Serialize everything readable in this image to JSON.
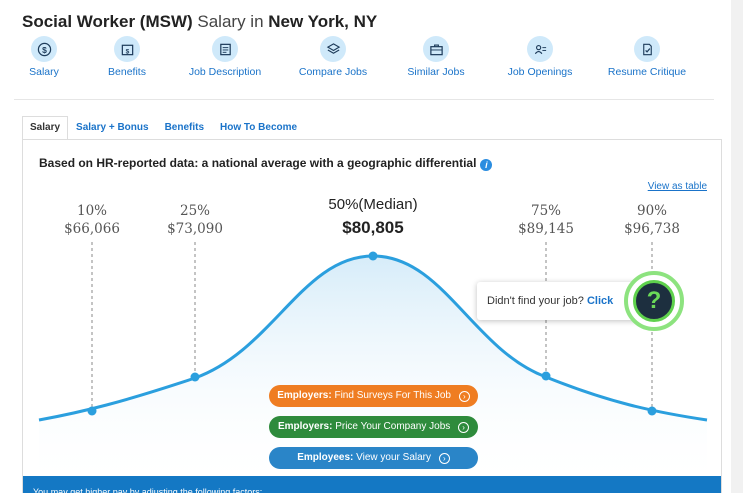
{
  "title": {
    "job": "Social Worker (MSW)",
    "salary_in": "Salary in",
    "location": "New York, NY"
  },
  "topnav": [
    {
      "name": "nav-salary",
      "icon": "dollar-icon",
      "label": "Salary"
    },
    {
      "name": "nav-benefits",
      "icon": "gift-icon",
      "label": "Benefits"
    },
    {
      "name": "nav-job-description",
      "icon": "document-icon",
      "label": "Job Description"
    },
    {
      "name": "nav-compare-jobs",
      "icon": "layers-icon",
      "label": "Compare Jobs"
    },
    {
      "name": "nav-similar-jobs",
      "icon": "briefcase-icon",
      "label": "Similar Jobs"
    },
    {
      "name": "nav-job-openings",
      "icon": "id-card-icon",
      "label": "Job Openings"
    },
    {
      "name": "nav-resume-critique",
      "icon": "resume-check-icon",
      "label": "Resume Critique"
    }
  ],
  "tabs": [
    {
      "label": "Salary",
      "active": true
    },
    {
      "label": "Salary + Bonus",
      "active": false
    },
    {
      "label": "Benefits",
      "active": false
    },
    {
      "label": "How To Become",
      "active": false
    }
  ],
  "panel": {
    "heading": "Based on HR-reported data: a national average with a geographic differential",
    "view_table": "View as table"
  },
  "percentiles": [
    {
      "pct": "10%",
      "value": "$66,066"
    },
    {
      "pct": "25%",
      "value": "$73,090"
    },
    {
      "pct": "50%(Median)",
      "value": "$80,805",
      "median": true
    },
    {
      "pct": "75%",
      "value": "$89,145"
    },
    {
      "pct": "90%",
      "value": "$96,738"
    }
  ],
  "popup": {
    "text": "Didn't find your job?",
    "link": "Click"
  },
  "help_icon": "question-mark-icon",
  "buttons": {
    "employers_surveys": {
      "bold": "Employers:",
      "text": "Find Surveys For This Job"
    },
    "employers_price": {
      "bold": "Employers:",
      "text": "Price Your Company Jobs"
    },
    "employees_view": {
      "bold": "Employees:",
      "text": "View your Salary"
    }
  },
  "bottom_bar": "You may get higher pay by adjusting the following factors:",
  "colors": {
    "accent": "#1a73c9",
    "curve": "#2b9fde",
    "orange": "#ef7d22",
    "green": "#2e8b3c",
    "blue": "#2a85c8"
  }
}
